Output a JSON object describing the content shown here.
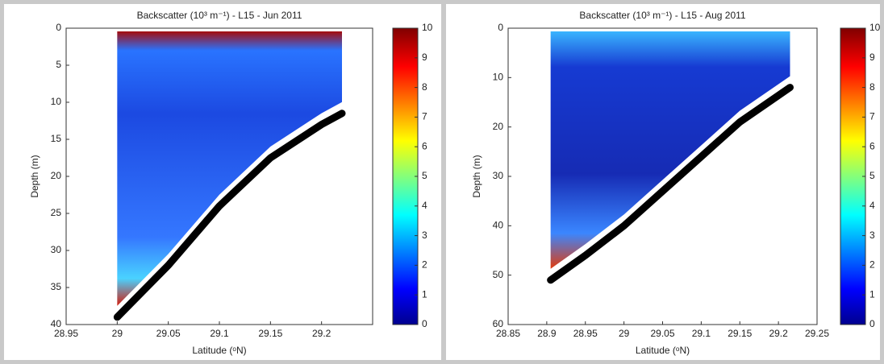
{
  "chart_data": [
    {
      "type": "section",
      "title": "Backscatter (10³ m⁻¹) - L15 - Jun 2011",
      "xlabel": "Latitude (ᵒN)",
      "ylabel": "Depth (m)",
      "xlim": [
        28.95,
        29.25
      ],
      "xticks": [
        28.95,
        29,
        29.05,
        29.1,
        29.15,
        29.2
      ],
      "ylim": [
        0,
        40
      ],
      "yticks": [
        0,
        5,
        10,
        15,
        20,
        25,
        30,
        35,
        40
      ],
      "y_reversed": true,
      "colorbar": {
        "clim": [
          0,
          10
        ],
        "ticks": [
          0,
          1,
          2,
          3,
          4,
          5,
          6,
          7,
          8,
          9,
          10
        ]
      },
      "bottom": {
        "x": [
          29.0,
          29.05,
          29.1,
          29.15,
          29.2,
          29.22
        ],
        "y": [
          39,
          32,
          24,
          17.5,
          13,
          11.5
        ]
      }
    },
    {
      "type": "section",
      "title": "Backscatter (10³ m⁻¹) - L15 - Aug 2011",
      "xlabel": "Latitude (ᵒN)",
      "ylabel": "Depth (m)",
      "xlim": [
        28.85,
        29.25
      ],
      "xticks": [
        28.85,
        28.9,
        28.95,
        29,
        29.05,
        29.1,
        29.15,
        29.2,
        29.25
      ],
      "ylim": [
        0,
        60
      ],
      "yticks": [
        0,
        10,
        20,
        30,
        40,
        50,
        60
      ],
      "y_reversed": true,
      "colorbar": {
        "clim": [
          0,
          10
        ],
        "ticks": [
          0,
          1,
          2,
          3,
          4,
          5,
          6,
          7,
          8,
          9,
          10
        ]
      },
      "bottom": {
        "x": [
          28.905,
          28.95,
          29.0,
          29.05,
          29.1,
          29.15,
          29.215
        ],
        "y": [
          51,
          46,
          40,
          33,
          26,
          19,
          12
        ]
      }
    }
  ]
}
